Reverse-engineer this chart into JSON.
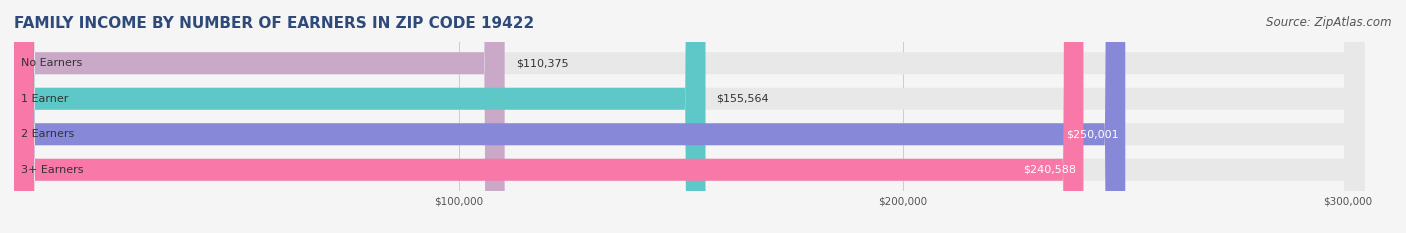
{
  "title": "FAMILY INCOME BY NUMBER OF EARNERS IN ZIP CODE 19422",
  "source": "Source: ZipAtlas.com",
  "categories": [
    "No Earners",
    "1 Earner",
    "2 Earners",
    "3+ Earners"
  ],
  "values": [
    110375,
    155564,
    250001,
    240588
  ],
  "bar_colors": [
    "#c9a8c8",
    "#5ec8c8",
    "#8888d8",
    "#f878a8"
  ],
  "label_colors": [
    "#333333",
    "#333333",
    "#ffffff",
    "#ffffff"
  ],
  "xlim": [
    0,
    310000
  ],
  "xticks": [
    100000,
    200000,
    300000
  ],
  "xtick_labels": [
    "$100,000",
    "$200,000",
    "$300,000"
  ],
  "background_color": "#f5f5f5",
  "bar_background_color": "#e8e8e8",
  "title_color": "#2e4a7a",
  "title_fontsize": 11,
  "source_fontsize": 8.5,
  "label_fontsize": 8,
  "category_fontsize": 8,
  "bar_height": 0.62,
  "value_labels": [
    "$110,375",
    "$155,564",
    "$250,001",
    "$240,588"
  ]
}
